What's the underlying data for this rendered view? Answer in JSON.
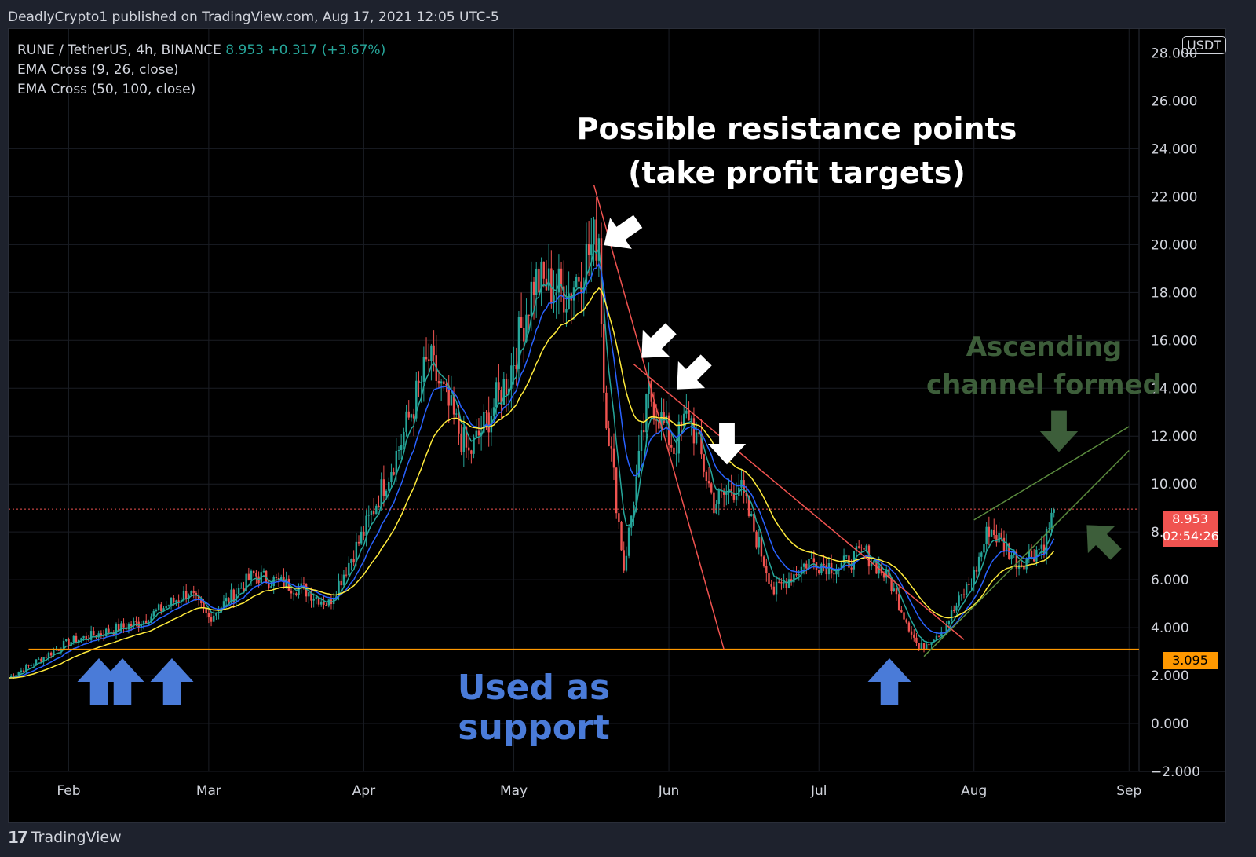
{
  "caption": "DeadlyCrypto1 published on TradingView.com, Aug 17, 2021 12:05 UTC-5",
  "legend": {
    "symbol": "RUNE / TetherUS, 4h, BINANCE",
    "price": "8.953",
    "change": "+0.317 (+3.67%)",
    "ema1": "EMA Cross (9, 26, close)",
    "ema2": "EMA Cross (50, 100, close)"
  },
  "unit": "USDT",
  "price_tag": {
    "price": "8.953",
    "countdown": "02:54:26"
  },
  "support_tag": "3.095",
  "annotations": {
    "resistance_line1": "Possible resistance points",
    "resistance_line2": "(take profit targets)",
    "channel_line1": "Ascending",
    "channel_line2": "channel formed",
    "support": "Used as support"
  },
  "footer": {
    "logo": "17",
    "brand": "TradingView"
  },
  "colors": {
    "up": "#26a69a",
    "down": "#ef5350",
    "ema_fast": "#26a69a",
    "ema_blue": "#2962ff",
    "ema_yellow": "#ffeb3b",
    "trendline": "#f05350",
    "channel": "#5b8c3e",
    "support_line": "#ff9800",
    "support_arrow": "#4a7bd8",
    "channel_text": "#3d5e3a"
  },
  "chart_data": {
    "type": "candlestick",
    "ylim": [
      -2,
      29
    ],
    "y_ticks": [
      "28.000",
      "26.000",
      "24.000",
      "22.000",
      "20.000",
      "18.000",
      "16.000",
      "14.000",
      "12.000",
      "10.000",
      "8.000",
      "6.000",
      "4.000",
      "2.000",
      "0.000",
      "−2.000"
    ],
    "x_ticks": [
      "Feb",
      "Mar",
      "Apr",
      "May",
      "Jun",
      "Jul",
      "Aug",
      "Sep"
    ],
    "current_price": 8.953,
    "support_level": 3.095,
    "approx_price_path": [
      {
        "date": "2021-01-20",
        "value": 1.9
      },
      {
        "date": "2021-02-01",
        "value": 3.4
      },
      {
        "date": "2021-02-08",
        "value": 3.8
      },
      {
        "date": "2021-02-15",
        "value": 4.2
      },
      {
        "date": "2021-02-25",
        "value": 5.5
      },
      {
        "date": "2021-03-01",
        "value": 4.4
      },
      {
        "date": "2021-03-10",
        "value": 6.2
      },
      {
        "date": "2021-03-20",
        "value": 5.6
      },
      {
        "date": "2021-03-25",
        "value": 5.0
      },
      {
        "date": "2021-04-01",
        "value": 8.0
      },
      {
        "date": "2021-04-08",
        "value": 11.5
      },
      {
        "date": "2021-04-14",
        "value": 15.2
      },
      {
        "date": "2021-04-22",
        "value": 11.2
      },
      {
        "date": "2021-04-30",
        "value": 14.5
      },
      {
        "date": "2021-05-05",
        "value": 18.5
      },
      {
        "date": "2021-05-12",
        "value": 18.0
      },
      {
        "date": "2021-05-18",
        "value": 20.5
      },
      {
        "date": "2021-05-19",
        "value": 14.0
      },
      {
        "date": "2021-05-23",
        "value": 6.5
      },
      {
        "date": "2021-05-28",
        "value": 13.8
      },
      {
        "date": "2021-06-02",
        "value": 11.5
      },
      {
        "date": "2021-06-05",
        "value": 13.0
      },
      {
        "date": "2021-06-10",
        "value": 9.2
      },
      {
        "date": "2021-06-15",
        "value": 10.0
      },
      {
        "date": "2021-06-22",
        "value": 5.5
      },
      {
        "date": "2021-06-29",
        "value": 6.8
      },
      {
        "date": "2021-07-05",
        "value": 6.5
      },
      {
        "date": "2021-07-10",
        "value": 7.2
      },
      {
        "date": "2021-07-15",
        "value": 6.0
      },
      {
        "date": "2021-07-21",
        "value": 3.1
      },
      {
        "date": "2021-07-26",
        "value": 4.0
      },
      {
        "date": "2021-08-01",
        "value": 6.2
      },
      {
        "date": "2021-08-04",
        "value": 8.2
      },
      {
        "date": "2021-08-10",
        "value": 6.7
      },
      {
        "date": "2021-08-15",
        "value": 7.5
      },
      {
        "date": "2021-08-17",
        "value": 8.953
      }
    ],
    "trendlines": [
      {
        "name": "steep-resistance",
        "from": {
          "date": "2021-05-17",
          "value": 22.5
        },
        "to": {
          "date": "2021-06-12",
          "value": 3.1
        }
      },
      {
        "name": "descending-resistance",
        "from": {
          "date": "2021-05-25",
          "value": 15.0
        },
        "to": {
          "date": "2021-07-30",
          "value": 3.5
        }
      },
      {
        "name": "channel-upper",
        "from": {
          "date": "2021-08-01",
          "value": 8.5
        },
        "to": {
          "date": "2021-09-01",
          "value": 12.4
        }
      },
      {
        "name": "channel-lower",
        "from": {
          "date": "2021-07-22",
          "value": 2.8
        },
        "to": {
          "date": "2021-09-01",
          "value": 11.4
        }
      }
    ]
  }
}
